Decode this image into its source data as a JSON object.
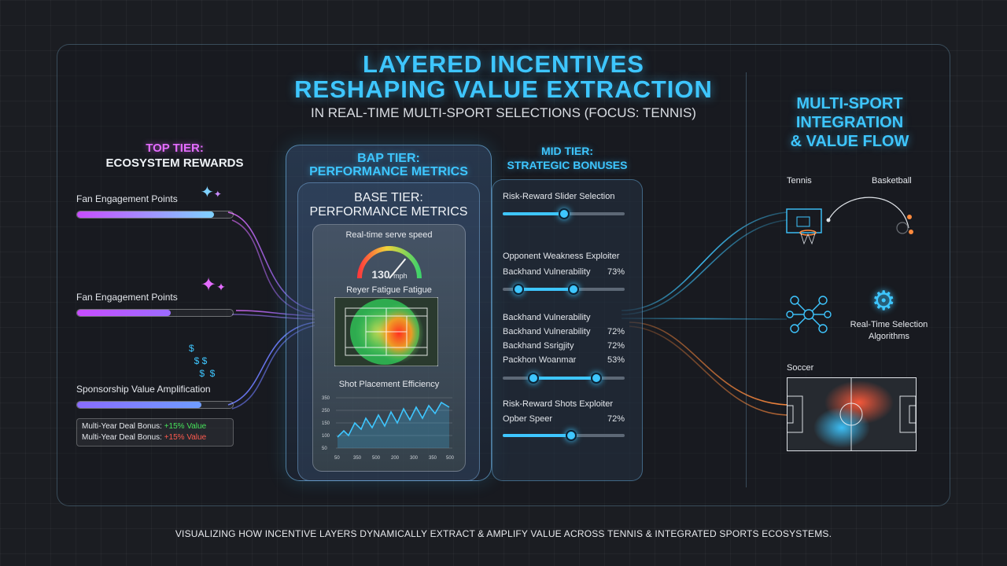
{
  "header": {
    "title_line1": "LAYERED INCENTIVES",
    "title_line2": "RESHAPING VALUE EXTRACTION",
    "subtitle": "IN REAL-TIME MULTI-SPORT SELECTIONS (FOCUS: TENNIS)"
  },
  "top_tier": {
    "label": "TOP TIER:",
    "sublabel": "ECOSYSTEM REWARDS",
    "items": [
      {
        "label": "Fan Engagement Points",
        "progress": 0.88
      },
      {
        "label": "Fan Engagement Points",
        "progress": 0.6
      },
      {
        "label": "Sponsorship Value Amplification",
        "progress": 0.8
      }
    ],
    "deal_rows": [
      {
        "label": "Multi-Year Deal Bonus:",
        "value": "+15% Value",
        "color": "#46e35a"
      },
      {
        "label": "Multi-Year Deal Bonus:",
        "value": "+15% Value",
        "color": "#ff5a4e"
      }
    ]
  },
  "bap_tier": {
    "label": "BAP TIER:",
    "sublabel": "PERFORMANCE METRICS"
  },
  "base_tier": {
    "label": "BASE TIER:",
    "sublabel": "PERFORMANCE METRICS",
    "gauge_title": "Real-time serve speed",
    "gauge_value": "130",
    "gauge_unit": "mph",
    "gauge_level": 0.72,
    "heatmap_title": "Reyer Fatigue Fatigue",
    "line_title": "Shot Placement Efficiency",
    "line_x_ticks": [
      "50",
      "350",
      "500",
      "200",
      "300",
      "350",
      "500"
    ],
    "line_y_ticks": [
      "350",
      "250",
      "150",
      "100",
      "50"
    ]
  },
  "mid_tier": {
    "label": "MID TIER:",
    "sublabel": "STRATEGIC BONUSES",
    "risk_slider_label": "Risk-Reward Slider Selection",
    "risk_slider_value": 0.5,
    "exploiter_title": "Opponent Weakness Exploiter",
    "exploiter_row": {
      "label": "Backhand Vulnerability",
      "value": "73%"
    },
    "exploiter_range": [
      0.13,
      0.58
    ],
    "vuln_title": "Backhand Vulnerability",
    "vuln_rows": [
      {
        "label": "Backhand Vulnerability",
        "value": "72%"
      },
      {
        "label": "Backhand Ssrigjity",
        "value": "72%"
      },
      {
        "label": "Packhon Woanmar",
        "value": "53%"
      }
    ],
    "vuln_range": [
      0.25,
      0.77
    ],
    "shots_title": "Risk-Reward Shots Exploiter",
    "shots_row": {
      "label": "Opber Speer",
      "value": "72%"
    },
    "shots_slider_value": 0.56
  },
  "right_panel": {
    "title_line1": "MULTI-SPORT",
    "title_line2": "INTEGRATION",
    "title_line3": "& VALUE FLOW",
    "sport1": "Tennis",
    "sport2": "Basketball",
    "algo_label_line1": "Real-Time Selection",
    "algo_label_line2": "Algorithms",
    "sport3": "Soccer"
  },
  "footer": {
    "caption": "VISUALIZING HOW INCENTIVE LAYERS DYNAMICALLY EXTRACT & AMPLIFY VALUE ACROSS TENNIS & INTEGRATED SPORTS ECOSYSTEMS."
  },
  "colors": {
    "accent": "#3ec6ff",
    "pink": "#e46cff",
    "orange": "#ff8a3d"
  }
}
